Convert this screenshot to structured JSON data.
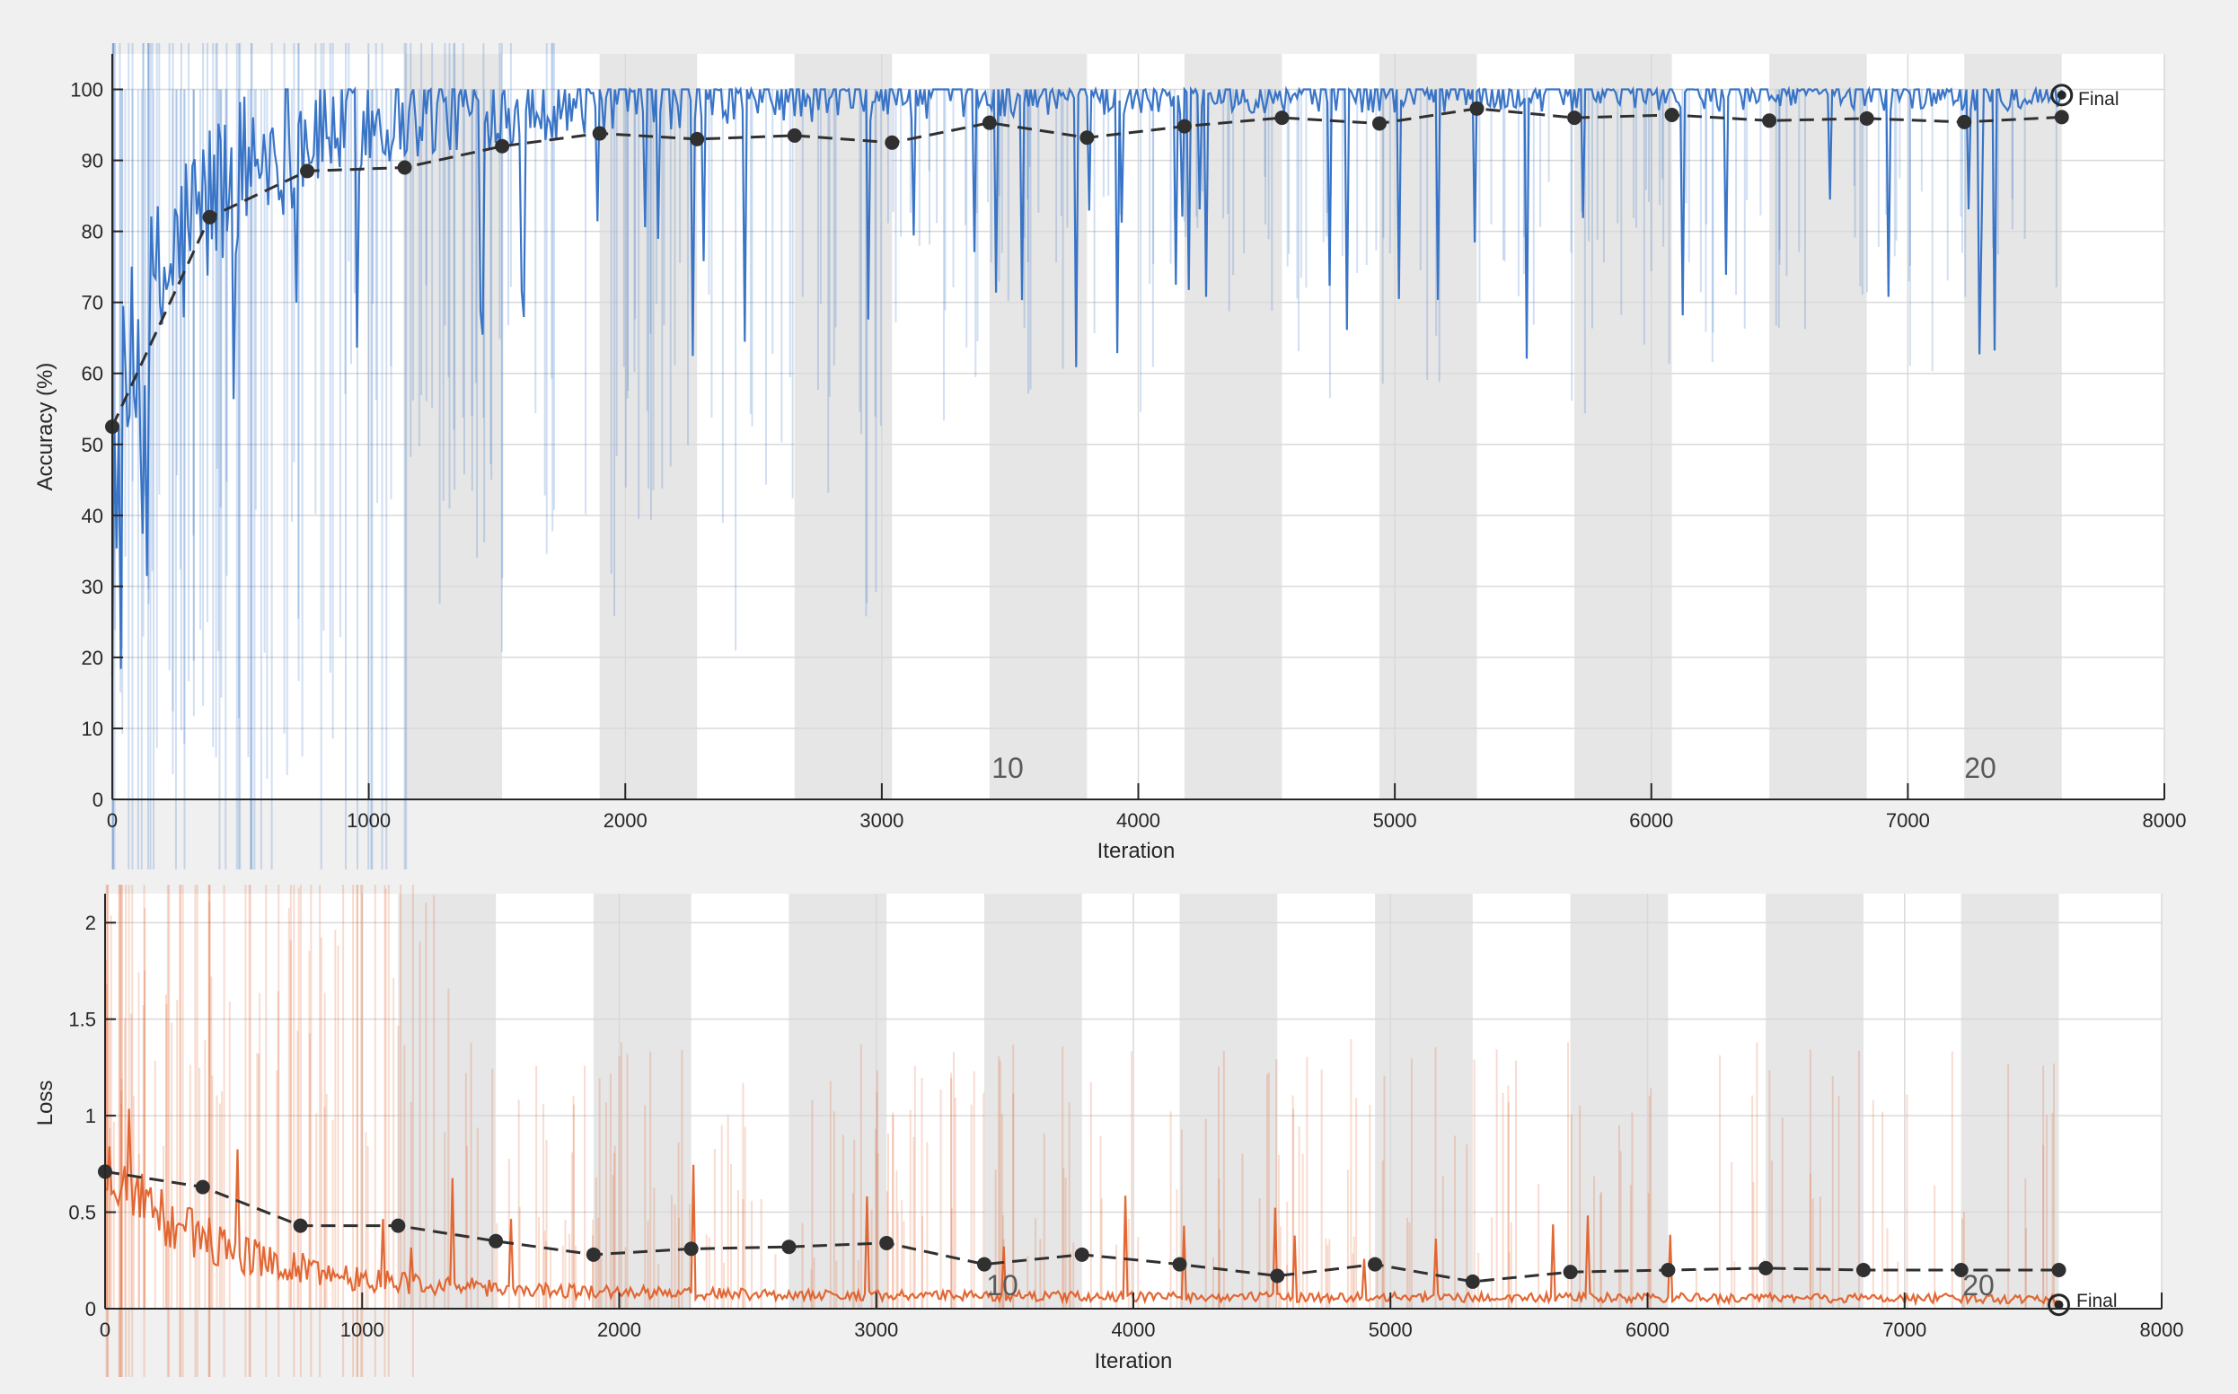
{
  "colors": {
    "accuracy": "#2f6ec4",
    "loss": "#e0602a",
    "validation": "#303030",
    "epoch_band": "#e6e6e6"
  },
  "chart_data": [
    {
      "type": "line",
      "name": "accuracy",
      "xlabel": "Iteration",
      "ylabel": "Accuracy (%)",
      "xlim": [
        0,
        8000
      ],
      "ylim": [
        0,
        105
      ],
      "xticks": [
        "0",
        "1000",
        "2000",
        "3000",
        "4000",
        "5000",
        "6000",
        "7000",
        "8000"
      ],
      "yticks": [
        "0",
        "10",
        "20",
        "30",
        "40",
        "50",
        "60",
        "70",
        "80",
        "90",
        "100"
      ],
      "epoch_labels": [
        "10",
        "20"
      ],
      "final_label": "Final",
      "validation": {
        "x": [
          0,
          380,
          760,
          1140,
          1520,
          1900,
          2280,
          2660,
          3040,
          3420,
          3800,
          4180,
          4560,
          4940,
          5320,
          5700,
          6080,
          6460,
          6840,
          7220,
          7600
        ],
        "y": [
          52.5,
          82,
          88.5,
          89,
          92,
          93.8,
          93,
          93.5,
          92.5,
          95.3,
          93.2,
          94.8,
          96,
          95.2,
          97.3,
          96,
          96.4,
          95.6,
          95.9,
          95.4,
          96.1
        ]
      }
    },
    {
      "type": "line",
      "name": "loss",
      "xlabel": "Iteration",
      "ylabel": "Loss",
      "xlim": [
        0,
        8000
      ],
      "ylim": [
        0,
        2.15
      ],
      "xticks": [
        "0",
        "1000",
        "2000",
        "3000",
        "4000",
        "5000",
        "6000",
        "7000",
        "8000"
      ],
      "yticks": [
        "0",
        "0.5",
        "1",
        "1.5",
        "2"
      ],
      "epoch_labels": [
        "10",
        "20"
      ],
      "final_label": "Final",
      "validation": {
        "x": [
          0,
          380,
          760,
          1140,
          1520,
          1900,
          2280,
          2660,
          3040,
          3420,
          3800,
          4180,
          4560,
          4940,
          5320,
          5700,
          6080,
          6460,
          6840,
          7220,
          7600
        ],
        "y": [
          0.71,
          0.63,
          0.43,
          0.43,
          0.35,
          0.28,
          0.31,
          0.32,
          0.34,
          0.23,
          0.28,
          0.23,
          0.17,
          0.23,
          0.14,
          0.19,
          0.2,
          0.21,
          0.2,
          0.2,
          0.2
        ]
      }
    }
  ]
}
